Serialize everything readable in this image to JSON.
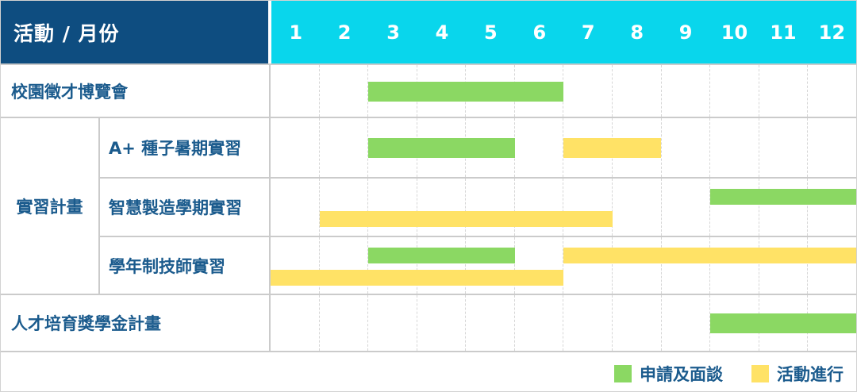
{
  "header": {
    "corner_label": "活動 / 月份",
    "months": [
      "1",
      "2",
      "3",
      "4",
      "5",
      "6",
      "7",
      "8",
      "9",
      "10",
      "11",
      "12"
    ]
  },
  "colors": {
    "header_navy": "#0E4D80",
    "header_cyan": "#09D6EC",
    "label_blue": "#1B5B8D",
    "bar_green": "#8BD863",
    "bar_yellow": "#FFE266",
    "grid_line": "#cbcbcb"
  },
  "legend": {
    "items": [
      {
        "key": "apply",
        "label": "申請及面談",
        "color": "#8BD863"
      },
      {
        "key": "active",
        "label": "活動進行",
        "color": "#FFE266"
      }
    ]
  },
  "chart_data": {
    "type": "gantt",
    "x_unit": "month",
    "x_range": [
      1,
      12
    ],
    "x_ticks": [
      "1",
      "2",
      "3",
      "4",
      "5",
      "6",
      "7",
      "8",
      "9",
      "10",
      "11",
      "12"
    ],
    "group_label": "實習計畫",
    "legend": {
      "apply": "申請及面談",
      "active": "活動進行"
    },
    "rows": [
      {
        "group": "",
        "label": "校園徵才博覽會",
        "lines": 1,
        "bars": [
          {
            "type": "apply",
            "start": 3,
            "end": 6,
            "line": 0
          }
        ]
      },
      {
        "group": "實習計畫",
        "label": "A+ 種子暑期實習",
        "lines": 1,
        "bars": [
          {
            "type": "apply",
            "start": 3,
            "end": 5,
            "line": 0
          },
          {
            "type": "active",
            "start": 7,
            "end": 8,
            "line": 0
          }
        ]
      },
      {
        "group": "實習計畫",
        "label": "智慧製造學期實習",
        "lines": 2,
        "bars": [
          {
            "type": "apply",
            "start": 10,
            "end": 12,
            "line": 0
          },
          {
            "type": "active",
            "start": 2,
            "end": 7,
            "line": 1
          }
        ]
      },
      {
        "group": "實習計畫",
        "label": "學年制技師實習",
        "lines": 2,
        "bars": [
          {
            "type": "apply",
            "start": 3,
            "end": 5,
            "line": 0
          },
          {
            "type": "active",
            "start": 7,
            "end": 12,
            "line": 0
          },
          {
            "type": "active",
            "start": 1,
            "end": 6,
            "line": 1
          }
        ]
      },
      {
        "group": "",
        "label": "人才培育獎學金計畫",
        "lines": 1,
        "bars": [
          {
            "type": "apply",
            "start": 10,
            "end": 12,
            "line": 0
          }
        ]
      }
    ]
  }
}
